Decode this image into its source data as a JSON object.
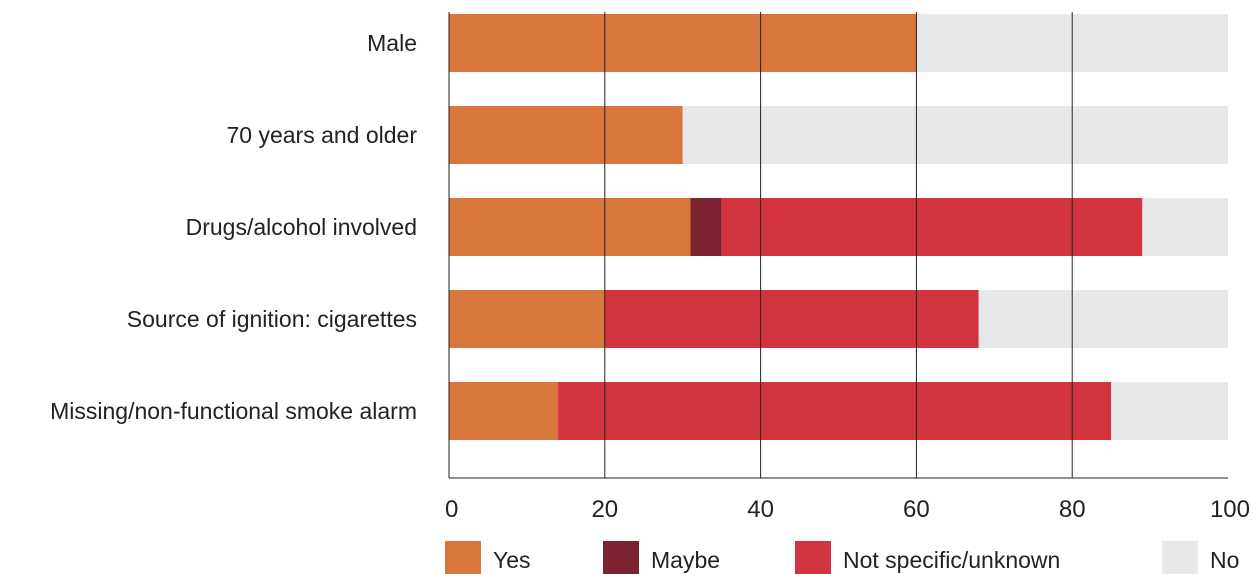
{
  "chart_data": {
    "type": "bar",
    "orientation": "horizontal",
    "stacked": true,
    "categories": [
      "Male",
      "70 years and older",
      "Drugs/alcohol involved",
      "Source of ignition: cigarettes",
      "Missing/non-functional smoke alarm"
    ],
    "series": [
      {
        "name": "Yes",
        "color": "#D8763C",
        "values": [
          60,
          30,
          31,
          20,
          14
        ]
      },
      {
        "name": "Maybe",
        "color": "#7D2230",
        "values": [
          0,
          0,
          4,
          0,
          0
        ]
      },
      {
        "name": "Not specific/unknown",
        "color": "#D1343E",
        "values": [
          0,
          0,
          54,
          48,
          71
        ]
      },
      {
        "name": "No",
        "color": "#E6E7E8",
        "values": [
          40,
          70,
          11,
          32,
          15
        ]
      }
    ],
    "xlim": [
      0,
      100
    ],
    "xticks": [
      "0",
      "20",
      "40",
      "60",
      "80",
      "100"
    ],
    "grid": "vertical",
    "legend": "bottom"
  }
}
